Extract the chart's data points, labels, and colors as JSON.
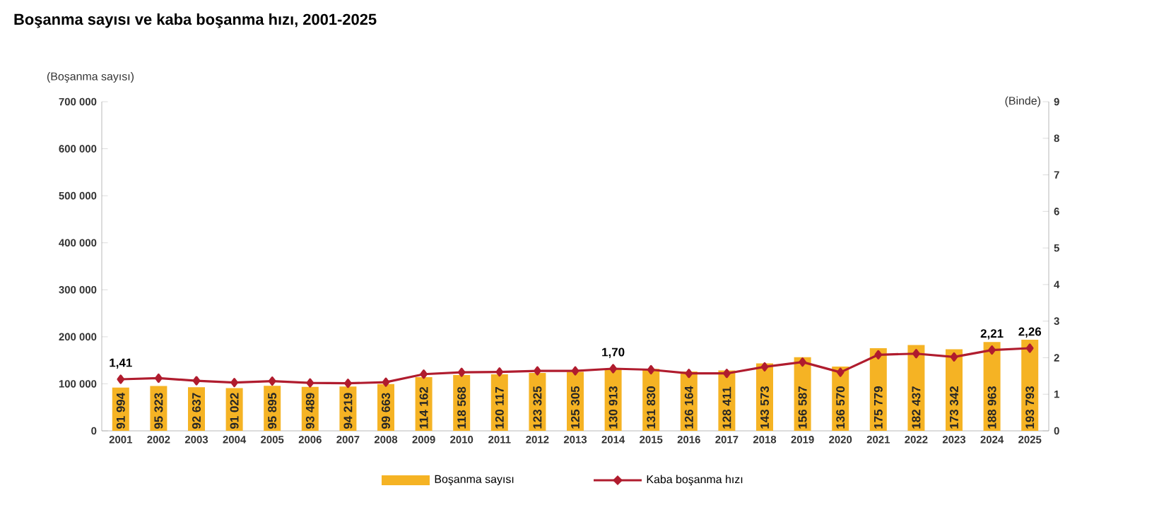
{
  "chart_data": {
    "type": "bar",
    "title": "Boşanma sayısı ve kaba boşanma hızı, 2001-2025",
    "ylabel": "(Boşanma sayısı)",
    "y2label": "(Binde)",
    "categories": [
      "2001",
      "2002",
      "2003",
      "2004",
      "2005",
      "2006",
      "2007",
      "2008",
      "2009",
      "2010",
      "2011",
      "2012",
      "2013",
      "2014",
      "2015",
      "2016",
      "2017",
      "2018",
      "2019",
      "2020",
      "2021",
      "2022",
      "2023",
      "2024",
      "2025"
    ],
    "series": [
      {
        "name": "Boşanma sayısı",
        "color": "#f5b324",
        "values": [
          91994,
          95323,
          92637,
          91022,
          95895,
          93489,
          94219,
          99663,
          114162,
          118568,
          120117,
          123325,
          125305,
          130913,
          131830,
          126164,
          128411,
          143573,
          156587,
          136570,
          175779,
          182437,
          173342,
          188963,
          193793
        ],
        "value_labels": [
          "91 994",
          "95 323",
          "92 637",
          "91 022",
          "95 895",
          "93 489",
          "94 219",
          "99 663",
          "114 162",
          "118 568",
          "120 117",
          "123 325",
          "125 305",
          "130 913",
          "131 830",
          "126 164",
          "128 411",
          "143 573",
          "156 587",
          "136 570",
          "175 779",
          "182 437",
          "173 342",
          "188 963",
          "193 793"
        ]
      },
      {
        "name": "Kaba boşanma hızı",
        "type": "line",
        "axis": "y2",
        "color": "#b01c2e",
        "marker": "diamond",
        "values": [
          1.41,
          1.44,
          1.37,
          1.32,
          1.36,
          1.31,
          1.3,
          1.33,
          1.55,
          1.6,
          1.61,
          1.64,
          1.64,
          1.7,
          1.67,
          1.57,
          1.57,
          1.75,
          1.88,
          1.6,
          2.08,
          2.11,
          2.02,
          2.21,
          2.26
        ],
        "value_labels": [
          "1,41",
          null,
          null,
          null,
          null,
          null,
          null,
          null,
          null,
          null,
          null,
          null,
          null,
          "1,70",
          null,
          null,
          null,
          null,
          null,
          null,
          null,
          null,
          null,
          "2,21",
          "2,26"
        ]
      }
    ],
    "ylim": [
      0,
      700000
    ],
    "yticks": [
      {
        "value": 0,
        "label": "0"
      },
      {
        "value": 100000,
        "label": "100 000"
      },
      {
        "value": 200000,
        "label": "200 000"
      },
      {
        "value": 300000,
        "label": "300 000"
      },
      {
        "value": 400000,
        "label": "400 000"
      },
      {
        "value": 500000,
        "label": "500 000"
      },
      {
        "value": 600000,
        "label": "600 000"
      },
      {
        "value": 700000,
        "label": "700 000"
      }
    ],
    "y2lim": [
      0,
      9
    ],
    "y2ticks": [
      0,
      1,
      2,
      3,
      4,
      5,
      6,
      7,
      8,
      9
    ],
    "grid": false,
    "legend": "bottom"
  }
}
